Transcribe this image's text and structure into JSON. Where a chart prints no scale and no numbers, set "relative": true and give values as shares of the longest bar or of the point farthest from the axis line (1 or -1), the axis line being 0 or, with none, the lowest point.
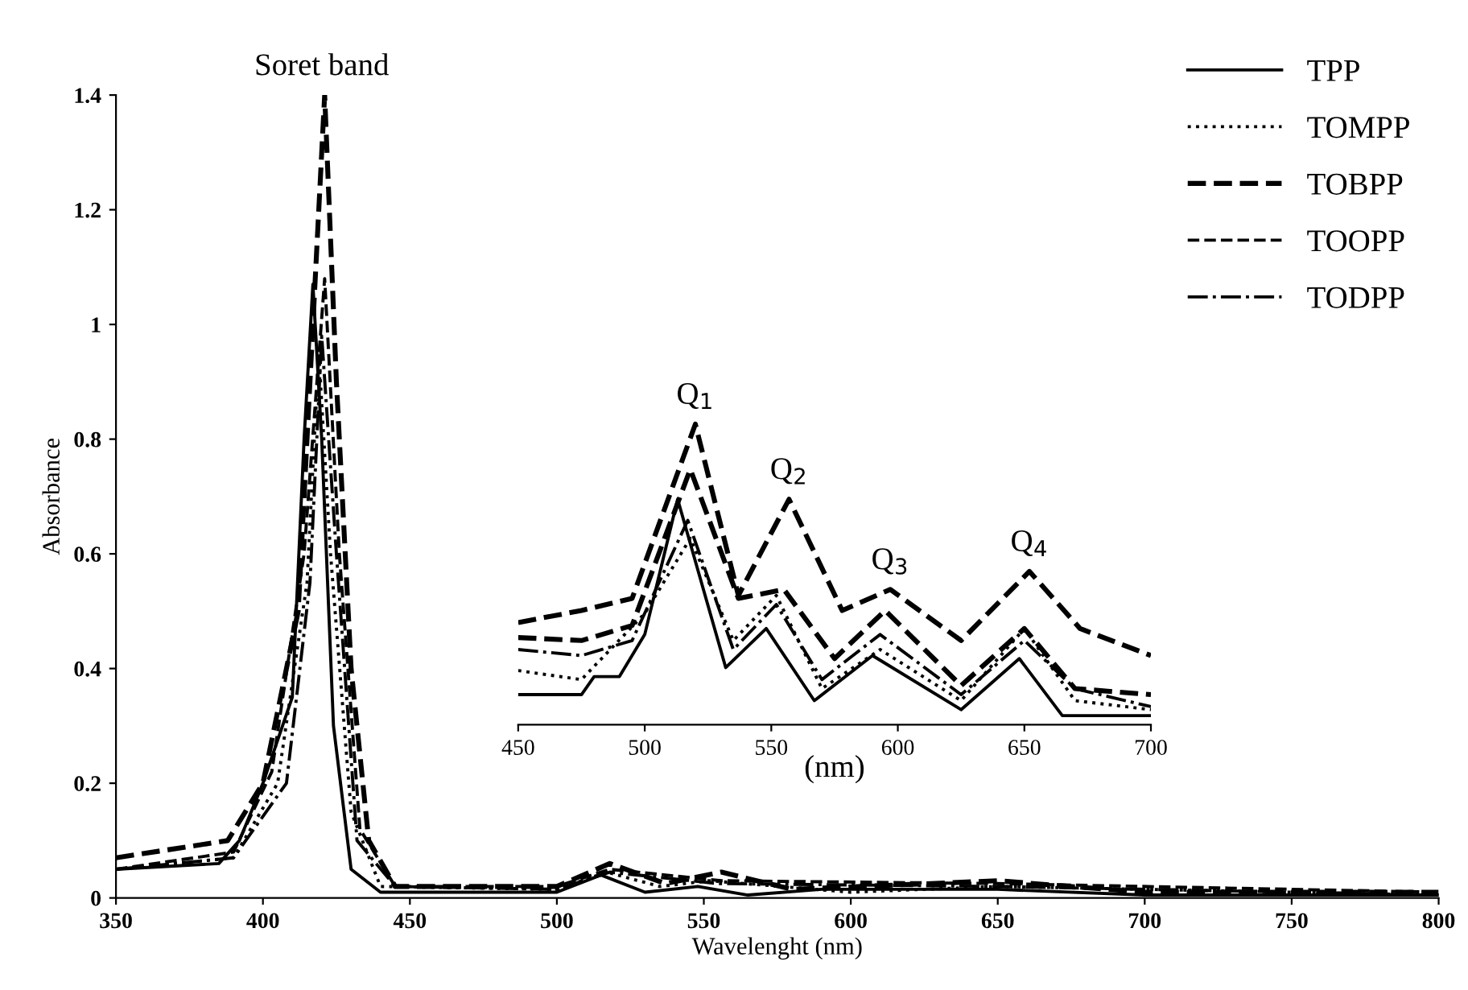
{
  "chart_data": [
    {
      "type": "line",
      "xlabel": "Wavelenght (nm)",
      "ylabel": "Absorbance",
      "xlim": [
        350,
        800
      ],
      "ylim": [
        0,
        1.4
      ],
      "xticks": [
        350,
        400,
        450,
        500,
        550,
        600,
        650,
        700,
        750,
        800
      ],
      "yticks": [
        0,
        0.2,
        0.4,
        0.6,
        0.8,
        1,
        1.2,
        1.4
      ],
      "grid": false,
      "legend": "top right",
      "annotations": [
        {
          "text": "Soret band",
          "x": 420,
          "y": 1.4
        }
      ],
      "series": [
        {
          "name": "TPP",
          "color": "#000000",
          "line_style": "solid",
          "x": [
            350,
            385,
            392,
            400,
            410,
            414,
            417,
            420,
            424,
            430,
            440,
            450,
            500,
            515,
            530,
            548,
            565,
            590,
            650,
            700,
            800
          ],
          "values": [
            0.05,
            0.06,
            0.1,
            0.2,
            0.35,
            0.8,
            1.07,
            0.8,
            0.3,
            0.05,
            0.01,
            0.01,
            0.01,
            0.04,
            0.01,
            0.02,
            0.005,
            0.015,
            0.015,
            0.005,
            0.005
          ]
        },
        {
          "name": "TOMPP",
          "color": "#000000",
          "line_style": "dotted",
          "x": [
            350,
            390,
            405,
            415,
            419,
            423,
            430,
            440,
            500,
            517,
            535,
            552,
            600,
            650,
            800
          ],
          "values": [
            0.05,
            0.07,
            0.2,
            0.55,
            0.95,
            0.6,
            0.15,
            0.02,
            0.015,
            0.045,
            0.02,
            0.03,
            0.01,
            0.02,
            0.005
          ]
        },
        {
          "name": "TOBPP",
          "color": "#000000",
          "line_style": "dashed",
          "x": [
            350,
            388,
            400,
            412,
            418,
            421,
            425,
            430,
            436,
            445,
            500,
            518,
            537,
            556,
            580,
            650,
            700,
            800
          ],
          "values": [
            0.07,
            0.1,
            0.2,
            0.5,
            1.1,
            1.4,
            0.9,
            0.4,
            0.1,
            0.02,
            0.02,
            0.06,
            0.025,
            0.045,
            0.015,
            0.03,
            0.01,
            0.01
          ]
        },
        {
          "name": "TOOPP",
          "color": "#000000",
          "line_style": "dashed",
          "x": [
            350,
            390,
            403,
            414,
            421,
            426,
            433,
            445,
            500,
            518,
            556,
            650,
            800
          ],
          "values": [
            0.05,
            0.08,
            0.22,
            0.6,
            1.08,
            0.6,
            0.12,
            0.02,
            0.02,
            0.05,
            0.03,
            0.025,
            0.01
          ]
        },
        {
          "name": "TODPP",
          "color": "#000000",
          "line_style": "dashdot",
          "x": [
            350,
            390,
            408,
            416,
            420,
            425,
            432,
            445,
            500,
            518,
            555,
            650,
            800
          ],
          "values": [
            0.05,
            0.07,
            0.2,
            0.55,
            0.98,
            0.6,
            0.1,
            0.02,
            0.015,
            0.045,
            0.025,
            0.02,
            0.005
          ]
        }
      ]
    },
    {
      "type": "line",
      "relative": true,
      "xlabel": "(nm)",
      "xlim": [
        450,
        700
      ],
      "xticks": [
        450,
        500,
        550,
        600,
        650,
        700
      ],
      "tick_labels": "x",
      "grid": false,
      "annotations": [
        {
          "text": "Q$_{1}$",
          "x": 520,
          "y": 1.0
        },
        {
          "text": "Q$_{2}$",
          "x": 557,
          "y": 0.75
        },
        {
          "text": "Q$_{3}$",
          "x": 597,
          "y": 0.45
        },
        {
          "text": "Q$_{4}$",
          "x": 652,
          "y": 0.51
        }
      ],
      "series": [
        {
          "color": "#000000",
          "line_style": "solid",
          "x": [
            450,
            475,
            480,
            490,
            500,
            513,
            532,
            548,
            567,
            590,
            625,
            648,
            665,
            700
          ],
          "values": [
            0.1,
            0.1,
            0.16,
            0.16,
            0.3,
            0.75,
            0.19,
            0.32,
            0.08,
            0.23,
            0.05,
            0.22,
            0.03,
            0.03
          ]
        },
        {
          "color": "#000000",
          "line_style": "dotted",
          "x": [
            450,
            475,
            500,
            518,
            535,
            552,
            570,
            593,
            625,
            650,
            670,
            700
          ],
          "values": [
            0.18,
            0.15,
            0.37,
            0.62,
            0.28,
            0.43,
            0.12,
            0.25,
            0.08,
            0.32,
            0.08,
            0.05
          ]
        },
        {
          "color": "#000000",
          "line_style": "dashed",
          "x": [
            450,
            475,
            495,
            520,
            537,
            557,
            578,
            597,
            625,
            652,
            672,
            700
          ],
          "values": [
            0.34,
            0.38,
            0.42,
            1.0,
            0.43,
            0.75,
            0.38,
            0.45,
            0.28,
            0.51,
            0.32,
            0.23
          ]
        },
        {
          "color": "#000000",
          "line_style": "dashed",
          "x": [
            450,
            475,
            495,
            518,
            537,
            555,
            575,
            595,
            625,
            650,
            670,
            700
          ],
          "values": [
            0.29,
            0.28,
            0.33,
            0.85,
            0.42,
            0.45,
            0.22,
            0.38,
            0.13,
            0.32,
            0.12,
            0.1
          ]
        },
        {
          "color": "#000000",
          "line_style": "dashdot",
          "x": [
            450,
            475,
            495,
            517,
            535,
            552,
            570,
            593,
            625,
            650,
            670,
            700
          ],
          "values": [
            0.25,
            0.23,
            0.28,
            0.68,
            0.25,
            0.4,
            0.15,
            0.3,
            0.1,
            0.28,
            0.12,
            0.06
          ]
        }
      ]
    }
  ]
}
